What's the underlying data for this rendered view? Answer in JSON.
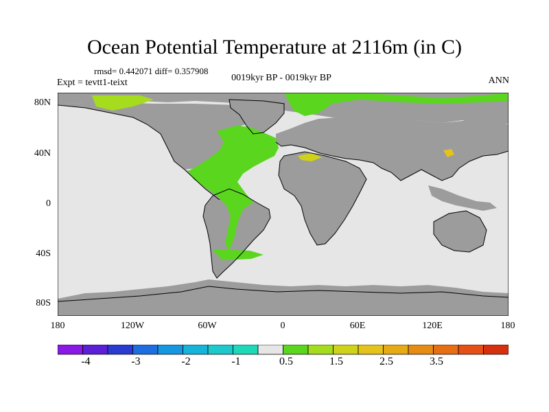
{
  "title": "Ocean Potential Temperature at 2116m (in C)",
  "stats": "rmsd= 0.442071 diff= 0.357908",
  "expt": "Expt = tevtt1-teixt",
  "period": "0019kyr BP - 0019kyr BP",
  "season": "ANN",
  "lat_labels": [
    "80N",
    "40N",
    "0",
    "40S",
    "80S"
  ],
  "lon_labels": [
    "180",
    "120W",
    "60W",
    "0",
    "60E",
    "120E",
    "180"
  ],
  "colorbar": {
    "colors": [
      "#8a19e6",
      "#5a1fd6",
      "#2b3ad1",
      "#1f6ee0",
      "#1697e0",
      "#16b3da",
      "#1ec9cc",
      "#1ed9b8",
      "#e6e6e6",
      "#5ad61f",
      "#a5dc1e",
      "#cfd21a",
      "#e6c31a",
      "#e6aa14",
      "#e68c14",
      "#e66e14",
      "#e65014",
      "#d6300f"
    ],
    "labels": [
      "-4",
      "-3",
      "-2",
      "-1",
      "0.5",
      "1.5",
      "2.5",
      "3.5"
    ]
  },
  "map_colors": {
    "land": "#9c9c9c",
    "ocean_neutral": "#e6e6e6",
    "ocean_warm": "#5ad61f",
    "ocean_warmer": "#a5dc1e",
    "ocean_hot": "#cfd21a",
    "ocean_hotter": "#e6c31a"
  }
}
